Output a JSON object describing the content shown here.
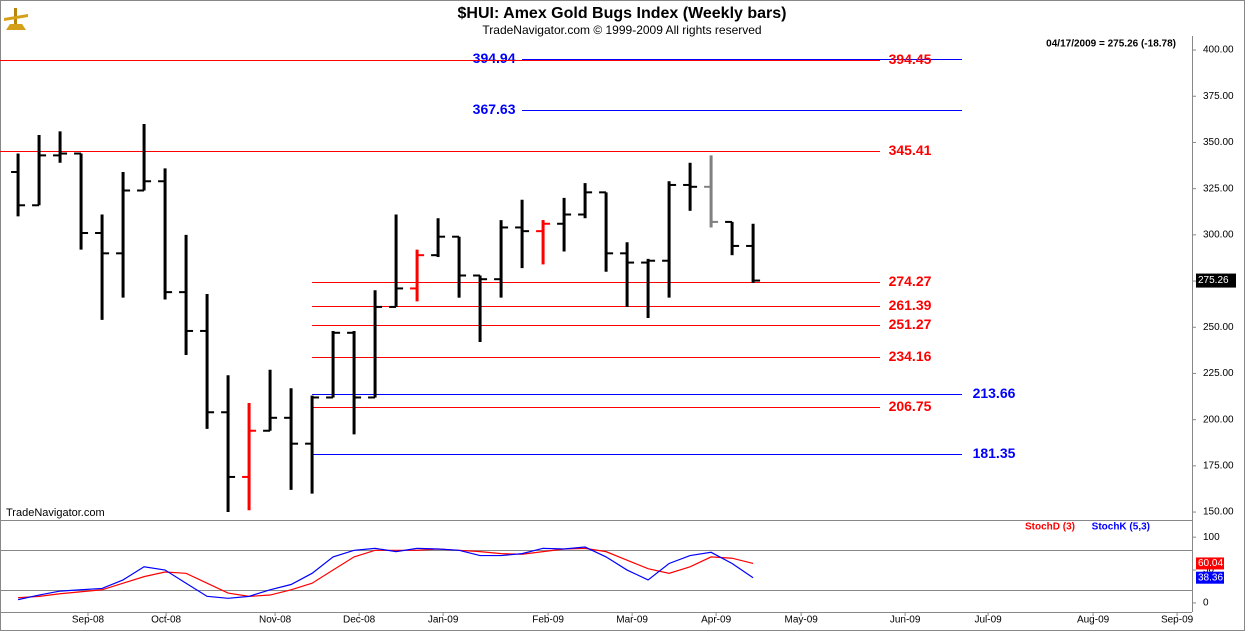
{
  "chart_data": [
    {
      "type": "ohlc",
      "title": "$HUI:  Amex Gold Bugs Index  (Weekly bars)",
      "subtitle": "TradeNavigator.com © 1999-2009 All rights reserved",
      "annotation": "04/17/2009 = 275.26 (-18.78)",
      "watermark": "TradeNavigator.com",
      "xlim": [
        -0.86,
        55.9
      ],
      "xticks": [
        {
          "value": 3.33,
          "label": "Sep-08"
        },
        {
          "value": 7.05,
          "label": "Oct-08"
        },
        {
          "value": 12.24,
          "label": "Nov-08"
        },
        {
          "value": 16.24,
          "label": "Dec-08"
        },
        {
          "value": 20.24,
          "label": "Jan-09"
        },
        {
          "value": 25.24,
          "label": "Feb-09"
        },
        {
          "value": 29.24,
          "label": "Mar-09"
        },
        {
          "value": 33.24,
          "label": "Apr-09"
        },
        {
          "value": 37.29,
          "label": "May-09"
        },
        {
          "value": 42.24,
          "label": "Jun-09"
        },
        {
          "value": 46.19,
          "label": "Jul-09"
        },
        {
          "value": 51.19,
          "label": "Aug-09"
        },
        {
          "value": 55.19,
          "label": "Sep-09"
        }
      ],
      "ylim": [
        145.7,
        407.6
      ],
      "yticks": [
        {
          "value": 150,
          "label": "150.00"
        },
        {
          "value": 175,
          "label": "175.00"
        },
        {
          "value": 200,
          "label": "200.00"
        },
        {
          "value": 225,
          "label": "225.00"
        },
        {
          "value": 250,
          "label": "250.00"
        },
        {
          "value": 275,
          "label": "275.00"
        },
        {
          "value": 300,
          "label": "300.00"
        },
        {
          "value": 325,
          "label": "325.00"
        },
        {
          "value": 350,
          "label": "350.00"
        },
        {
          "value": 375,
          "label": "375.00"
        },
        {
          "value": 400,
          "label": "400.00"
        }
      ],
      "series": {
        "open": [
          334,
          316,
          343,
          344,
          301,
          290,
          324,
          329,
          269,
          248,
          204,
          169,
          194,
          201,
          187,
          212,
          247,
          212,
          261,
          271,
          289,
          299,
          278,
          276,
          304,
          302,
          306,
          311,
          323,
          290,
          285,
          286,
          327,
          326,
          307,
          294
        ],
        "high": [
          344,
          354,
          356,
          344,
          311,
          334,
          360,
          336,
          300,
          268,
          224,
          209,
          227,
          217,
          213,
          248,
          248,
          270,
          311,
          292,
          309,
          299,
          278,
          308,
          319,
          308,
          320,
          328,
          323,
          296,
          287,
          329,
          339,
          343,
          307,
          306
        ],
        "low": [
          310,
          316,
          339,
          292,
          254,
          266,
          324,
          265,
          235,
          195,
          150,
          151,
          194,
          162,
          160,
          212,
          192,
          212,
          261,
          264,
          288,
          266,
          242,
          266,
          282,
          284,
          291,
          309,
          280,
          261,
          255,
          266,
          313,
          304,
          289,
          274
        ],
        "close": [
          316,
          343,
          344,
          301,
          290,
          324,
          329,
          269,
          248,
          204,
          169,
          194,
          201,
          187,
          212,
          247,
          212,
          261,
          271,
          289,
          299,
          278,
          276,
          304,
          302,
          306,
          311,
          323,
          290,
          285,
          286,
          327,
          326,
          307,
          294,
          275.26
        ],
        "colors": [
          "#000000",
          "#000000",
          "#000000",
          "#000000",
          "#000000",
          "#000000",
          "#000000",
          "#000000",
          "#000000",
          "#000000",
          "#000000",
          "#ff0000",
          "#000000",
          "#000000",
          "#000000",
          "#000000",
          "#000000",
          "#000000",
          "#000000",
          "#ff0000",
          "#000000",
          "#000000",
          "#000000",
          "#000000",
          "#000000",
          "#ff0000",
          "#000000",
          "#000000",
          "#000000",
          "#000000",
          "#000000",
          "#000000",
          "#000000",
          "#808080",
          "#000000",
          "#000000"
        ]
      },
      "levels": [
        {
          "value": 394.94,
          "color": "#0000ff",
          "from": 24
        },
        {
          "value": 394.45,
          "color": "#ff0000",
          "from": -0.86
        },
        {
          "value": 367.63,
          "color": "#0000ff",
          "from": 24
        },
        {
          "value": 345.41,
          "color": "#ff0000",
          "from": -0.86
        },
        {
          "value": 274.27,
          "color": "#ff0000",
          "from": 14
        },
        {
          "value": 261.39,
          "color": "#ff0000",
          "from": 14
        },
        {
          "value": 251.27,
          "color": "#ff0000",
          "from": 14
        },
        {
          "value": 234.16,
          "color": "#ff0000",
          "from": 14
        },
        {
          "value": 213.66,
          "color": "#0000ff",
          "from": 14
        },
        {
          "value": 206.75,
          "color": "#ff0000",
          "from": 14
        },
        {
          "value": 181.35,
          "color": "#0000ff",
          "from": 14
        }
      ]
    },
    {
      "type": "line",
      "ylim": [
        -13.8,
        124.6
      ],
      "yticks": [
        0,
        50,
        100
      ],
      "bands": [
        20,
        80
      ],
      "series": [
        {
          "name": "StochD (3)",
          "color": "#ff0000",
          "values": [
            8,
            10,
            14,
            17,
            20,
            30,
            40,
            47,
            45,
            30,
            15,
            10,
            12,
            20,
            30,
            50,
            70,
            80,
            80,
            80,
            82,
            80,
            78,
            75,
            74,
            78,
            82,
            83,
            78,
            65,
            52,
            45,
            55,
            70,
            68,
            60.04
          ]
        },
        {
          "name": "StochK (5,3)",
          "color": "#0000ff",
          "values": [
            5,
            12,
            18,
            20,
            22,
            35,
            55,
            50,
            30,
            10,
            7,
            10,
            20,
            28,
            45,
            70,
            80,
            83,
            78,
            83,
            82,
            80,
            72,
            72,
            75,
            83,
            82,
            85,
            70,
            50,
            35,
            60,
            72,
            77,
            60,
            38.36
          ]
        }
      ]
    }
  ]
}
